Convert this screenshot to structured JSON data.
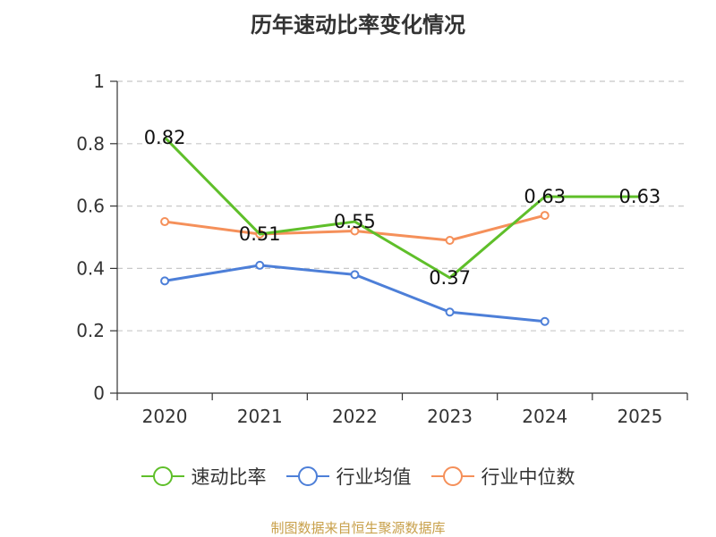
{
  "title": "历年速动比率变化情况",
  "source": "制图数据来自恒生聚源数据库",
  "chart_data": {
    "type": "line",
    "categories": [
      "2020",
      "2021",
      "2022",
      "2023",
      "2024",
      "2025"
    ],
    "yticks": [
      "0",
      "0.2",
      "0.4",
      "0.6",
      "0.8",
      "1"
    ],
    "ylim": [
      0,
      1
    ],
    "grid": true,
    "legend_position": "bottom",
    "series": [
      {
        "name": "速动比率",
        "color": "#5fbf2a",
        "values": [
          0.82,
          0.51,
          0.55,
          0.37,
          0.63,
          0.63
        ],
        "labels": [
          "0.82",
          "0.51",
          "0.55",
          "0.37",
          "0.63",
          "0.63"
        ],
        "show_markers": false
      },
      {
        "name": "行业均值",
        "color": "#4d7fd8",
        "values": [
          0.36,
          0.41,
          0.38,
          0.26,
          0.23,
          null
        ],
        "show_markers": true
      },
      {
        "name": "行业中位数",
        "color": "#f5905a",
        "values": [
          0.55,
          0.51,
          0.52,
          0.49,
          0.57,
          null
        ],
        "show_markers": true
      }
    ]
  }
}
